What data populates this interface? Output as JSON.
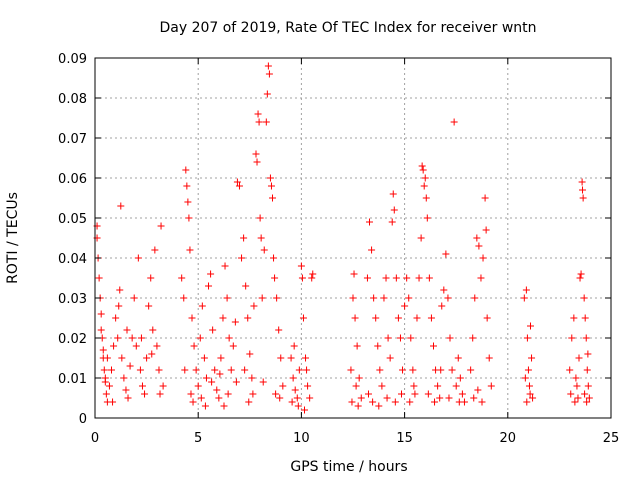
{
  "chart_data": {
    "type": "scatter",
    "title": "Day 207 of 2019, Rate Of TEC Index for receiver wntn",
    "xlabel": "GPS time / hours",
    "ylabel": "ROTI / TECUs",
    "xlim": [
      0,
      25
    ],
    "ylim": [
      0,
      0.09
    ],
    "xticks": [
      0,
      5,
      10,
      15,
      20,
      25
    ],
    "xtick_labels": [
      "0",
      "5",
      "10",
      "15",
      "20",
      "25"
    ],
    "yticks": [
      0,
      0.01,
      0.02,
      0.03,
      0.04,
      0.05,
      0.06,
      0.07,
      0.08,
      0.09
    ],
    "ytick_labels": [
      "0",
      "0.01",
      "0.02",
      "0.03",
      "0.04",
      "0.05",
      "0.06",
      "0.07",
      "0.08",
      "0.09"
    ],
    "grid": true,
    "marker": "+",
    "marker_color": "#ff0000",
    "series": [
      {
        "name": "ROTI",
        "points": [
          [
            0.1,
            0.048
          ],
          [
            0.1,
            0.045
          ],
          [
            0.15,
            0.04
          ],
          [
            0.2,
            0.035
          ],
          [
            0.25,
            0.03
          ],
          [
            0.3,
            0.026
          ],
          [
            0.35,
            0.02
          ],
          [
            0.4,
            0.017
          ],
          [
            0.45,
            0.012
          ],
          [
            0.5,
            0.009
          ],
          [
            0.55,
            0.006
          ],
          [
            0.6,
            0.004
          ],
          [
            0.3,
            0.022
          ],
          [
            0.4,
            0.015
          ],
          [
            0.5,
            0.01
          ],
          [
            0.7,
            0.008
          ],
          [
            0.8,
            0.012
          ],
          [
            0.9,
            0.018
          ],
          [
            1.0,
            0.025
          ],
          [
            1.1,
            0.02
          ],
          [
            1.2,
            0.032
          ],
          [
            1.25,
            0.053
          ],
          [
            1.3,
            0.015
          ],
          [
            1.4,
            0.01
          ],
          [
            1.5,
            0.007
          ],
          [
            1.6,
            0.005
          ],
          [
            1.7,
            0.013
          ],
          [
            1.8,
            0.02
          ],
          [
            1.9,
            0.03
          ],
          [
            2.0,
            0.018
          ],
          [
            2.1,
            0.04
          ],
          [
            2.2,
            0.012
          ],
          [
            2.3,
            0.008
          ],
          [
            2.4,
            0.006
          ],
          [
            2.5,
            0.015
          ],
          [
            2.6,
            0.028
          ],
          [
            2.7,
            0.035
          ],
          [
            2.8,
            0.022
          ],
          [
            2.9,
            0.042
          ],
          [
            3.0,
            0.018
          ],
          [
            3.1,
            0.012
          ],
          [
            3.2,
            0.048
          ],
          [
            3.3,
            0.008
          ],
          [
            0.6,
            0.015
          ],
          [
            1.15,
            0.028
          ],
          [
            1.55,
            0.022
          ],
          [
            2.25,
            0.02
          ],
          [
            2.75,
            0.016
          ],
          [
            3.15,
            0.006
          ],
          [
            0.85,
            0.004
          ],
          [
            4.2,
            0.035
          ],
          [
            4.3,
            0.03
          ],
          [
            4.4,
            0.062
          ],
          [
            4.45,
            0.058
          ],
          [
            4.5,
            0.054
          ],
          [
            4.55,
            0.05
          ],
          [
            4.6,
            0.042
          ],
          [
            4.7,
            0.025
          ],
          [
            4.8,
            0.018
          ],
          [
            4.9,
            0.012
          ],
          [
            5.0,
            0.008
          ],
          [
            5.1,
            0.02
          ],
          [
            5.2,
            0.028
          ],
          [
            5.3,
            0.015
          ],
          [
            5.4,
            0.01
          ],
          [
            5.5,
            0.033
          ],
          [
            5.6,
            0.036
          ],
          [
            5.7,
            0.022
          ],
          [
            5.8,
            0.012
          ],
          [
            5.9,
            0.007
          ],
          [
            6.0,
            0.005
          ],
          [
            6.1,
            0.015
          ],
          [
            6.2,
            0.025
          ],
          [
            6.3,
            0.038
          ],
          [
            6.4,
            0.03
          ],
          [
            6.5,
            0.02
          ],
          [
            6.6,
            0.012
          ],
          [
            6.7,
            0.018
          ],
          [
            6.8,
            0.024
          ],
          [
            6.9,
            0.059
          ],
          [
            7.0,
            0.058
          ],
          [
            7.1,
            0.04
          ],
          [
            7.2,
            0.045
          ],
          [
            7.3,
            0.033
          ],
          [
            7.4,
            0.025
          ],
          [
            7.5,
            0.016
          ],
          [
            7.6,
            0.01
          ],
          [
            7.7,
            0.028
          ],
          [
            7.8,
            0.066
          ],
          [
            7.85,
            0.064
          ],
          [
            7.9,
            0.076
          ],
          [
            7.95,
            0.074
          ],
          [
            8.0,
            0.05
          ],
          [
            8.05,
            0.045
          ],
          [
            8.1,
            0.03
          ],
          [
            8.2,
            0.042
          ],
          [
            8.3,
            0.074
          ],
          [
            8.35,
            0.081
          ],
          [
            8.4,
            0.088
          ],
          [
            8.45,
            0.086
          ],
          [
            8.5,
            0.06
          ],
          [
            8.55,
            0.058
          ],
          [
            8.6,
            0.055
          ],
          [
            8.65,
            0.04
          ],
          [
            8.7,
            0.035
          ],
          [
            8.8,
            0.03
          ],
          [
            8.9,
            0.022
          ],
          [
            9.0,
            0.015
          ],
          [
            9.1,
            0.008
          ],
          [
            4.35,
            0.012
          ],
          [
            4.65,
            0.006
          ],
          [
            4.75,
            0.004
          ],
          [
            5.15,
            0.005
          ],
          [
            5.65,
            0.009
          ],
          [
            6.05,
            0.011
          ],
          [
            6.45,
            0.006
          ],
          [
            6.85,
            0.009
          ],
          [
            7.25,
            0.012
          ],
          [
            7.65,
            0.006
          ],
          [
            8.15,
            0.009
          ],
          [
            8.75,
            0.006
          ],
          [
            8.95,
            0.005
          ],
          [
            7.45,
            0.004
          ],
          [
            6.25,
            0.003
          ],
          [
            5.35,
            0.003
          ],
          [
            9.5,
            0.015
          ],
          [
            9.6,
            0.01
          ],
          [
            9.7,
            0.007
          ],
          [
            9.8,
            0.005
          ],
          [
            9.9,
            0.012
          ],
          [
            10.0,
            0.038
          ],
          [
            10.05,
            0.035
          ],
          [
            10.1,
            0.025
          ],
          [
            10.2,
            0.015
          ],
          [
            10.3,
            0.008
          ],
          [
            10.4,
            0.005
          ],
          [
            10.5,
            0.035
          ],
          [
            10.55,
            0.036
          ],
          [
            9.65,
            0.018
          ],
          [
            9.85,
            0.003
          ],
          [
            10.15,
            0.002
          ],
          [
            10.25,
            0.012
          ],
          [
            9.55,
            0.004
          ],
          [
            12.4,
            0.012
          ],
          [
            12.5,
            0.03
          ],
          [
            12.55,
            0.036
          ],
          [
            12.6,
            0.025
          ],
          [
            12.7,
            0.018
          ],
          [
            12.8,
            0.01
          ],
          [
            12.9,
            0.005
          ],
          [
            13.2,
            0.035
          ],
          [
            13.3,
            0.049
          ],
          [
            13.4,
            0.042
          ],
          [
            13.5,
            0.03
          ],
          [
            13.6,
            0.025
          ],
          [
            13.7,
            0.018
          ],
          [
            13.8,
            0.012
          ],
          [
            13.9,
            0.008
          ],
          [
            14.0,
            0.03
          ],
          [
            14.1,
            0.035
          ],
          [
            14.2,
            0.02
          ],
          [
            14.3,
            0.015
          ],
          [
            14.4,
            0.049
          ],
          [
            14.45,
            0.056
          ],
          [
            14.5,
            0.052
          ],
          [
            14.6,
            0.035
          ],
          [
            14.7,
            0.025
          ],
          [
            14.8,
            0.02
          ],
          [
            14.9,
            0.012
          ],
          [
            15.0,
            0.028
          ],
          [
            15.1,
            0.035
          ],
          [
            15.2,
            0.03
          ],
          [
            15.3,
            0.02
          ],
          [
            15.4,
            0.012
          ],
          [
            15.5,
            0.006
          ],
          [
            15.6,
            0.025
          ],
          [
            15.7,
            0.035
          ],
          [
            15.8,
            0.045
          ],
          [
            15.85,
            0.063
          ],
          [
            15.9,
            0.062
          ],
          [
            15.95,
            0.058
          ],
          [
            16.0,
            0.06
          ],
          [
            16.05,
            0.055
          ],
          [
            16.1,
            0.05
          ],
          [
            16.2,
            0.035
          ],
          [
            16.3,
            0.025
          ],
          [
            16.4,
            0.018
          ],
          [
            16.5,
            0.012
          ],
          [
            16.6,
            0.008
          ],
          [
            16.7,
            0.005
          ],
          [
            16.8,
            0.028
          ],
          [
            16.9,
            0.032
          ],
          [
            17.0,
            0.041
          ],
          [
            17.1,
            0.03
          ],
          [
            17.2,
            0.02
          ],
          [
            17.3,
            0.012
          ],
          [
            17.4,
            0.074
          ],
          [
            17.5,
            0.008
          ],
          [
            17.6,
            0.015
          ],
          [
            17.7,
            0.01
          ],
          [
            17.8,
            0.006
          ],
          [
            17.9,
            0.004
          ],
          [
            18.2,
            0.012
          ],
          [
            18.3,
            0.02
          ],
          [
            18.4,
            0.03
          ],
          [
            18.5,
            0.045
          ],
          [
            18.6,
            0.043
          ],
          [
            18.7,
            0.035
          ],
          [
            18.8,
            0.04
          ],
          [
            18.9,
            0.055
          ],
          [
            18.95,
            0.047
          ],
          [
            19.0,
            0.025
          ],
          [
            19.1,
            0.015
          ],
          [
            19.2,
            0.008
          ],
          [
            13.25,
            0.006
          ],
          [
            13.45,
            0.004
          ],
          [
            13.75,
            0.003
          ],
          [
            14.15,
            0.005
          ],
          [
            14.55,
            0.004
          ],
          [
            14.85,
            0.006
          ],
          [
            15.25,
            0.004
          ],
          [
            15.45,
            0.008
          ],
          [
            16.15,
            0.006
          ],
          [
            16.45,
            0.004
          ],
          [
            16.75,
            0.012
          ],
          [
            17.15,
            0.005
          ],
          [
            17.65,
            0.004
          ],
          [
            18.35,
            0.005
          ],
          [
            18.55,
            0.007
          ],
          [
            18.75,
            0.004
          ],
          [
            12.45,
            0.004
          ],
          [
            12.65,
            0.008
          ],
          [
            12.75,
            0.003
          ],
          [
            20.8,
            0.03
          ],
          [
            20.9,
            0.032
          ],
          [
            20.95,
            0.02
          ],
          [
            21.0,
            0.012
          ],
          [
            21.05,
            0.008
          ],
          [
            21.1,
            0.023
          ],
          [
            21.15,
            0.015
          ],
          [
            21.2,
            0.005
          ],
          [
            20.85,
            0.01
          ],
          [
            20.92,
            0.004
          ],
          [
            21.08,
            0.006
          ],
          [
            23.0,
            0.012
          ],
          [
            23.1,
            0.02
          ],
          [
            23.2,
            0.025
          ],
          [
            23.3,
            0.01
          ],
          [
            23.4,
            0.005
          ],
          [
            23.45,
            0.015
          ],
          [
            23.5,
            0.035
          ],
          [
            23.55,
            0.036
          ],
          [
            23.6,
            0.059
          ],
          [
            23.62,
            0.057
          ],
          [
            23.65,
            0.055
          ],
          [
            23.7,
            0.03
          ],
          [
            23.75,
            0.025
          ],
          [
            23.8,
            0.02
          ],
          [
            23.85,
            0.012
          ],
          [
            23.9,
            0.008
          ],
          [
            23.95,
            0.005
          ],
          [
            23.05,
            0.006
          ],
          [
            23.25,
            0.004
          ],
          [
            23.35,
            0.008
          ],
          [
            23.72,
            0.006
          ],
          [
            23.82,
            0.004
          ],
          [
            23.88,
            0.016
          ]
        ]
      }
    ]
  }
}
